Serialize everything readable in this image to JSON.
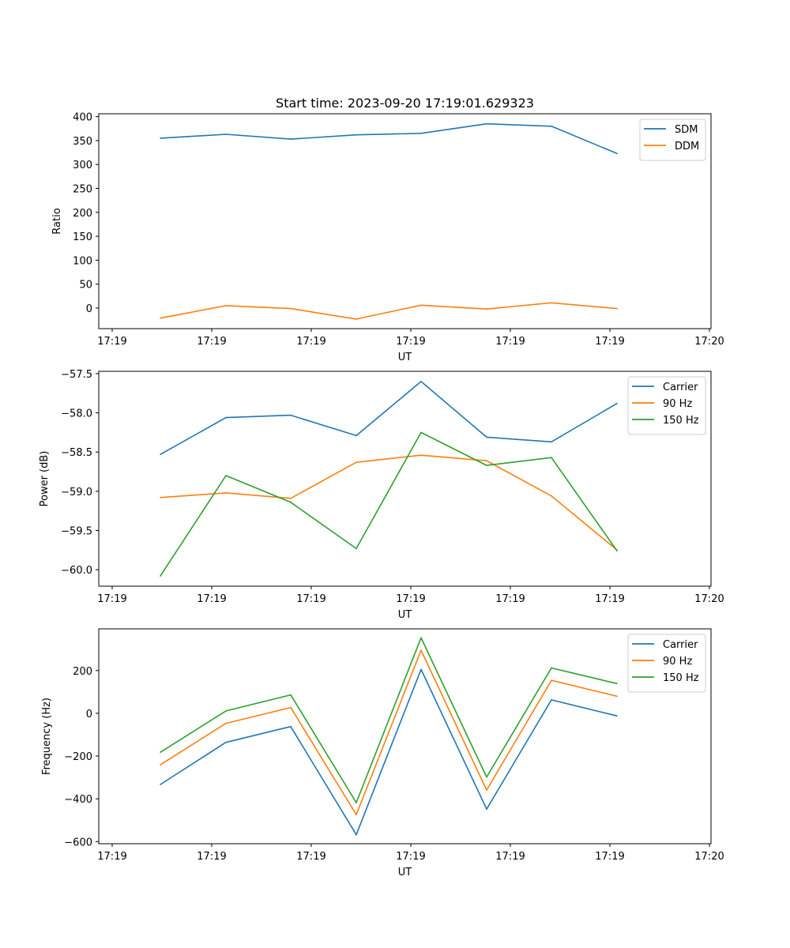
{
  "figure_title": "Start time: 2023-09-20 17:19:01.629323",
  "chart_data": [
    {
      "type": "line",
      "title": "Start time: 2023-09-20 17:19:01.629323",
      "xlabel": "UT",
      "ylabel": "Ratio",
      "x_tick_labels": [
        "17:19",
        "17:19",
        "17:19",
        "17:19",
        "17:19",
        "17:19",
        "17:20"
      ],
      "y_ticks": [
        0,
        50,
        100,
        150,
        200,
        250,
        300,
        350,
        400
      ],
      "y_tick_labels": [
        "0",
        "50",
        "100",
        "150",
        "200",
        "250",
        "300",
        "350",
        "400"
      ],
      "ylim": [
        -43,
        406
      ],
      "legend_position": "top-right",
      "series": [
        {
          "name": "SDM",
          "color": "#1f77b4",
          "values": [
            355,
            363,
            353,
            362,
            365,
            385,
            380,
            323
          ]
        },
        {
          "name": "DDM",
          "color": "#ff7f0e",
          "values": [
            -21,
            5,
            -1,
            -23,
            6,
            -2,
            11,
            -1
          ]
        }
      ]
    },
    {
      "type": "line",
      "title": "",
      "xlabel": "UT",
      "ylabel": "Power (dB)",
      "x_tick_labels": [
        "17:19",
        "17:19",
        "17:19",
        "17:19",
        "17:19",
        "17:19",
        "17:20"
      ],
      "y_ticks": [
        -60.0,
        -59.5,
        -59.0,
        -58.5,
        -58.0,
        -57.5
      ],
      "y_tick_labels": [
        "−60.0",
        "−59.5",
        "−59.0",
        "−58.5",
        "−58.0",
        "−57.5"
      ],
      "ylim": [
        -60.21,
        -57.47
      ],
      "legend_position": "top-right",
      "series": [
        {
          "name": "Carrier",
          "color": "#1f77b4",
          "values": [
            -58.53,
            -58.06,
            -58.03,
            -58.29,
            -57.6,
            -58.31,
            -58.37,
            -57.88
          ]
        },
        {
          "name": "90 Hz",
          "color": "#ff7f0e",
          "values": [
            -59.08,
            -59.02,
            -59.09,
            -58.63,
            -58.54,
            -58.61,
            -59.06,
            -59.75
          ]
        },
        {
          "name": "150 Hz",
          "color": "#2ca02c",
          "values": [
            -60.08,
            -58.8,
            -59.14,
            -59.73,
            -58.25,
            -58.67,
            -58.57,
            -59.76
          ]
        }
      ]
    },
    {
      "type": "line",
      "title": "",
      "xlabel": "UT",
      "ylabel": "Frequency (Hz)",
      "x_tick_labels": [
        "17:19",
        "17:19",
        "17:19",
        "17:19",
        "17:19",
        "17:19",
        "17:20"
      ],
      "y_ticks": [
        -600,
        -400,
        -200,
        0,
        200
      ],
      "y_tick_labels": [
        "−600",
        "−400",
        "−200",
        "0",
        "200"
      ],
      "ylim": [
        -610,
        395
      ],
      "legend_position": "top-right",
      "series": [
        {
          "name": "Carrier",
          "color": "#1f77b4",
          "values": [
            -333,
            -136,
            -62,
            -568,
            205,
            -448,
            63,
            -12
          ]
        },
        {
          "name": "90 Hz",
          "color": "#ff7f0e",
          "values": [
            -241,
            -47,
            27,
            -474,
            295,
            -359,
            154,
            80
          ]
        },
        {
          "name": "150 Hz",
          "color": "#2ca02c",
          "values": [
            -182,
            11,
            86,
            -418,
            353,
            -298,
            212,
            139
          ]
        }
      ]
    }
  ]
}
